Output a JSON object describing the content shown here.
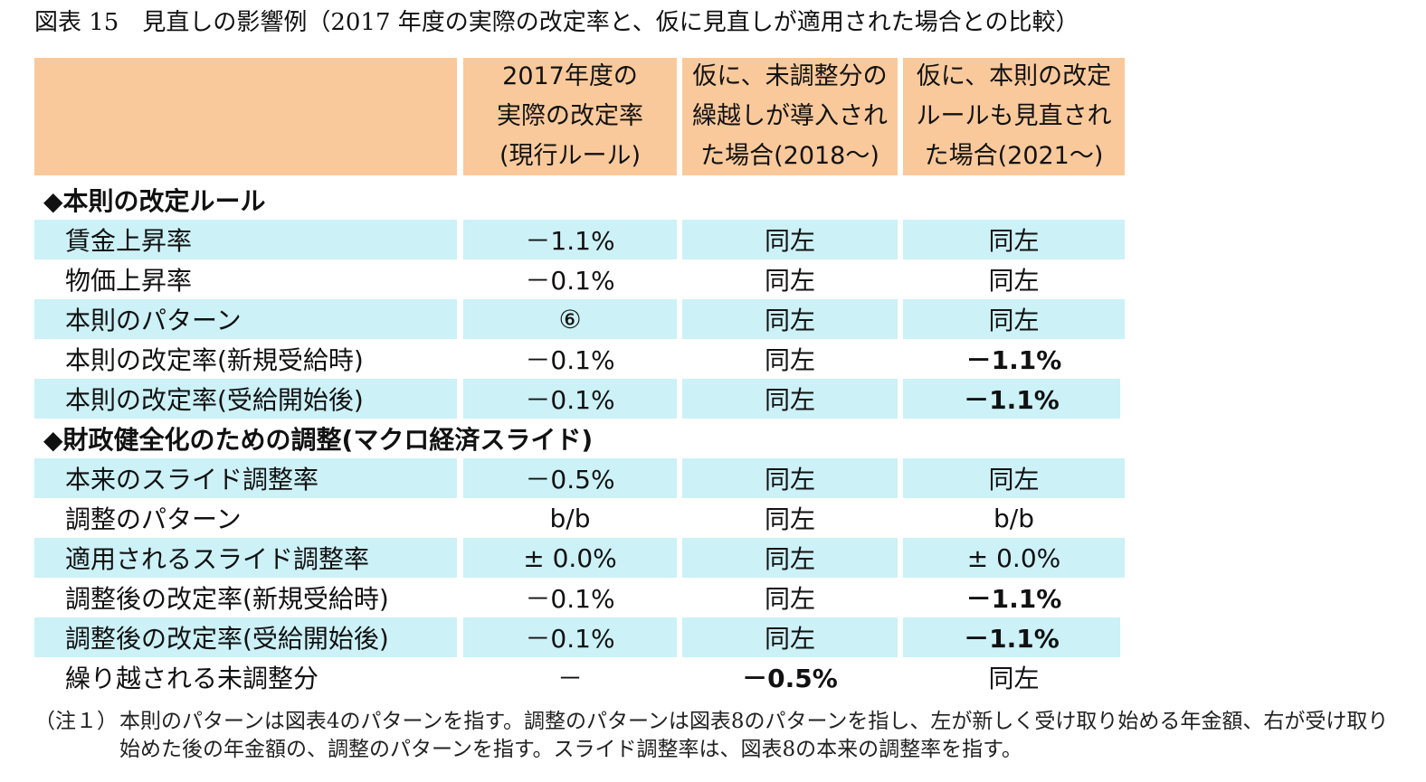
{
  "title": "図表 15　見直しの影響例（2017 年度の実際の改定率と、仮に見直しが適用された場合との比較）",
  "headers": [
    "",
    "2017年度の\n実際の改定率\n(現行ルール)",
    "仮に、未調整分の\n繰越しが導入され\nた場合(2018～)",
    "仮に、本則の改定\nルールも見直され\nた場合(2021～)"
  ],
  "sections": {
    "s1": "◆本則の改定ルール",
    "s2": "◆財政健全化のための調整(マクロ経済スライド)"
  },
  "rows": [
    {
      "label": "賃金上昇率",
      "c1": "－1.1%",
      "c2": "同左",
      "c3": "同左"
    },
    {
      "label": "物価上昇率",
      "c1": "－0.1%",
      "c2": "同左",
      "c3": "同左"
    },
    {
      "label": "本則のパターン",
      "c1": "⑥",
      "c2": "同左",
      "c3": "同左"
    },
    {
      "label": "本則の改定率(新規受給時)",
      "c1": "－0.1%",
      "c2": "同左",
      "c3": "－1.1%"
    },
    {
      "label": "本則の改定率(受給開始後)",
      "c1": "－0.1%",
      "c2": "同左",
      "c3": "－1.1%"
    },
    {
      "label": "本来のスライド調整率",
      "c1": "－0.5%",
      "c2": "同左",
      "c3": "同左"
    },
    {
      "label": "調整のパターン",
      "c1": "b/b",
      "c2": "同左",
      "c3": "b/b"
    },
    {
      "label": "適用されるスライド調整率",
      "c1": "± 0.0%",
      "c2": "同左",
      "c3": "± 0.0%"
    },
    {
      "label": "調整後の改定率(新規受給時)",
      "c1": "－0.1%",
      "c2": "同左",
      "c3": "－1.1%"
    },
    {
      "label": "調整後の改定率(受給開始後)",
      "c1": "－0.1%",
      "c2": "同左",
      "c3": "－1.1%"
    },
    {
      "label": "繰り越される未調整分",
      "c1": "－",
      "c2": "－0.5%",
      "c3": "同左"
    }
  ],
  "note": {
    "lead": "（注１）",
    "text": "本則のパターンは図表4のパターンを指す。調整のパターンは図表8のパターンを指し、左が新しく受け取り始める年金額、右が受け取り始めた後の年金額の、調整のパターンを指す。スライド調整率は、図表8の本来の調整率を指す。"
  },
  "colors": {
    "header_bg": "#fac99b",
    "row_shade": "#ccf1f7"
  }
}
